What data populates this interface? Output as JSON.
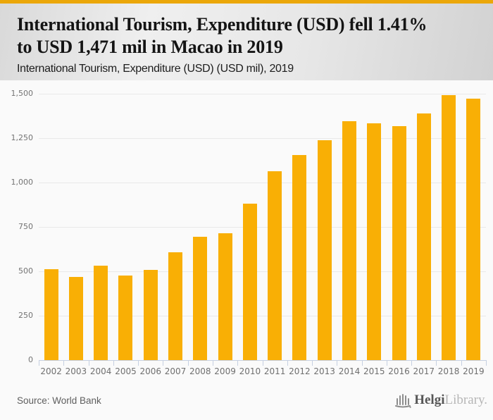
{
  "page": {
    "accent_top_bar_color": "#eba709",
    "background_color": "#fafafa"
  },
  "header": {
    "title_lines": [
      "International Tourism, Expenditure (USD) fell 1.41%",
      "to USD 1,471 mil in Macao in 2019"
    ],
    "title_full": "International Tourism, Expenditure (USD) fell 1.41% to USD 1,471 mil in Macao in 2019",
    "subtitle": "International Tourism, Expenditure (USD) (USD mil), 2019"
  },
  "chart_data": {
    "type": "bar",
    "title": "International Tourism, Expenditure (USD) (USD mil), 2019",
    "categories": [
      "2002",
      "2003",
      "2004",
      "2005",
      "2006",
      "2007",
      "2008",
      "2009",
      "2010",
      "2011",
      "2012",
      "2013",
      "2014",
      "2015",
      "2016",
      "2017",
      "2018",
      "2019"
    ],
    "values": [
      511,
      470,
      530,
      475,
      507,
      606,
      693,
      714,
      881,
      1062,
      1156,
      1238,
      1344,
      1335,
      1319,
      1388,
      1492,
      1471
    ],
    "xlabel": "",
    "ylabel": "",
    "ylim": [
      0,
      1500
    ],
    "ytick_values": [
      0,
      250,
      500,
      750,
      1000,
      1250,
      1500
    ],
    "ytick_labels": [
      "0",
      "250",
      "500",
      "750",
      "1,000",
      "1,250",
      "1,500"
    ],
    "grid": true,
    "legend": "none",
    "bar_color": "#f9af05",
    "gridline_color": "#e9e9e9",
    "axis_color": "#c6d0e2"
  },
  "footer": {
    "source": "Source: World Bank",
    "logo_bold": "Helgi",
    "logo_light": "Library."
  }
}
